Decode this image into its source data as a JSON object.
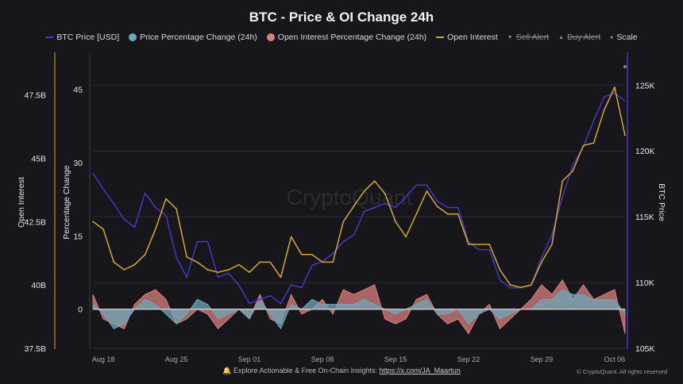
{
  "title": "BTC - Price & OI Change 24h",
  "legend": [
    {
      "label": "BTC Price [USD]",
      "marker": "line",
      "color": "#4a33c9",
      "active": true
    },
    {
      "label": "Price Percentage Change (24h)",
      "marker": "dot",
      "color": "#6ea7ba",
      "active": true
    },
    {
      "label": "Open Interest Percentage Change (24h)",
      "marker": "dot",
      "color": "#d9807c",
      "active": true
    },
    {
      "label": "Open Interest",
      "marker": "line",
      "color": "#d4a92a",
      "active": true
    },
    {
      "label": "Sell Alert",
      "marker": "triangle-down",
      "color": "#888888",
      "active": false
    },
    {
      "label": "Buy Alert",
      "marker": "triangle-up",
      "color": "#888888",
      "active": false
    },
    {
      "label": "Scale",
      "marker": "dot-small",
      "color": "#888888",
      "active": true
    }
  ],
  "watermark": "CryptoQuant",
  "footer": {
    "text": "Explore Actionable & Free On-Chain Insights:",
    "link": "https://x.com/JA_Maartun",
    "copyright": "© CryptoQuant. All rights reserved"
  },
  "chart_data": {
    "type": "line",
    "title": "BTC - Price & OI Change 24h",
    "x": [
      "Aug 17",
      "Aug 18",
      "Aug 19",
      "Aug 20",
      "Aug 21",
      "Aug 22",
      "Aug 23",
      "Aug 24",
      "Aug 25",
      "Aug 26",
      "Aug 27",
      "Aug 28",
      "Aug 29",
      "Aug 30",
      "Aug 31",
      "Sep 01",
      "Sep 02",
      "Sep 03",
      "Sep 04",
      "Sep 05",
      "Sep 06",
      "Sep 07",
      "Sep 08",
      "Sep 09",
      "Sep 10",
      "Sep 11",
      "Sep 12",
      "Sep 13",
      "Sep 14",
      "Sep 15",
      "Sep 16",
      "Sep 17",
      "Sep 18",
      "Sep 19",
      "Sep 20",
      "Sep 21",
      "Sep 22",
      "Sep 23",
      "Sep 24",
      "Sep 25",
      "Sep 26",
      "Sep 27",
      "Sep 28",
      "Sep 29",
      "Sep 30",
      "Oct 01",
      "Oct 02",
      "Oct 03",
      "Oct 04",
      "Oct 05",
      "Oct 06",
      "Oct 07"
    ],
    "x_ticks": [
      "Aug 18",
      "Aug 25",
      "Sep 01",
      "Sep 08",
      "Sep 15",
      "Sep 22",
      "Sep 29",
      "Oct 06"
    ],
    "axes": {
      "open_interest": {
        "label": "Open Interest",
        "ticks": [
          "37.5B",
          "40B",
          "42.5B",
          "45B",
          "47.5B"
        ],
        "range": [
          37.5,
          48.3
        ],
        "unit": "B"
      },
      "percentage": {
        "label": "Percentage Change",
        "ticks": [
          "0",
          "15",
          "30",
          "45"
        ],
        "range": [
          -8,
          48
        ]
      },
      "btc_price": {
        "label": "BTC Price",
        "ticks": [
          "105K",
          "110K",
          "115K",
          "120K",
          "125K"
        ],
        "range": [
          105,
          125.8
        ],
        "unit": "K"
      }
    },
    "grid": true,
    "legend_position": "top",
    "series": [
      {
        "name": "BTC Price [USD]",
        "axis": "btc_price",
        "kind": "line",
        "color": "#4a33c9",
        "values": [
          118.3,
          117.1,
          116.0,
          114.8,
          114.2,
          116.8,
          115.7,
          115.1,
          111.9,
          110.4,
          113.1,
          113.1,
          110.4,
          110.7,
          109.8,
          108.4,
          108.7,
          109.0,
          108.4,
          109.8,
          109.6,
          111.3,
          111.6,
          112.2,
          113.1,
          113.6,
          115.4,
          115.7,
          116.0,
          115.7,
          116.5,
          117.4,
          117.4,
          116.2,
          115.7,
          115.7,
          113.1,
          112.5,
          112.5,
          110.2,
          109.6,
          109.6,
          109.8,
          111.9,
          113.6,
          116.5,
          118.9,
          120.3,
          122.3,
          124.1,
          124.4,
          123.8
        ]
      },
      {
        "name": "Open Interest",
        "axis": "open_interest",
        "kind": "line",
        "color": "#d4a92a",
        "values": [
          42.5,
          42.2,
          40.9,
          40.6,
          40.8,
          41.2,
          42.2,
          43.4,
          43.0,
          41.1,
          40.9,
          40.6,
          40.5,
          40.6,
          40.8,
          40.5,
          40.9,
          40.9,
          40.3,
          41.9,
          41.2,
          41.2,
          40.9,
          40.9,
          42.5,
          43.1,
          43.7,
          44.1,
          43.6,
          42.5,
          41.9,
          42.8,
          43.7,
          43.1,
          42.8,
          42.8,
          41.6,
          41.6,
          41.6,
          40.6,
          40.0,
          39.9,
          40.0,
          40.9,
          41.6,
          44.1,
          44.5,
          45.5,
          45.6,
          46.9,
          47.8,
          45.9
        ]
      },
      {
        "name": "Price Percentage Change (24h)",
        "axis": "percentage",
        "kind": "area",
        "color": "#6ea7ba",
        "values": [
          1,
          -1,
          -4,
          -3,
          0,
          2,
          1,
          -1,
          -3,
          -1,
          2,
          1,
          -2,
          -1,
          0,
          -2,
          2,
          -1,
          -4,
          1,
          0,
          2,
          1,
          1,
          1,
          1,
          2,
          1,
          0,
          -1,
          0,
          1,
          2,
          -1,
          -1,
          0,
          -3,
          -1,
          0,
          -2,
          -1,
          0,
          0,
          2,
          2,
          4,
          3,
          3,
          2,
          2,
          2,
          -1
        ]
      },
      {
        "name": "Open Interest Percentage Change (24h)",
        "axis": "percentage",
        "kind": "area",
        "color": "#d9807c",
        "values": [
          3,
          -2,
          -3,
          -4,
          1,
          3,
          4,
          2,
          -3,
          -2,
          0,
          -1,
          -4,
          -2,
          0,
          -2,
          3,
          -2,
          -3,
          3,
          -1,
          0,
          2,
          -1,
          4,
          3,
          4,
          5,
          -2,
          -3,
          -2,
          2,
          3,
          -1,
          -3,
          -2,
          -5,
          -1,
          1,
          -4,
          -2,
          0,
          2,
          5,
          3,
          6,
          2,
          5,
          2,
          3,
          4,
          -5
        ]
      }
    ]
  }
}
